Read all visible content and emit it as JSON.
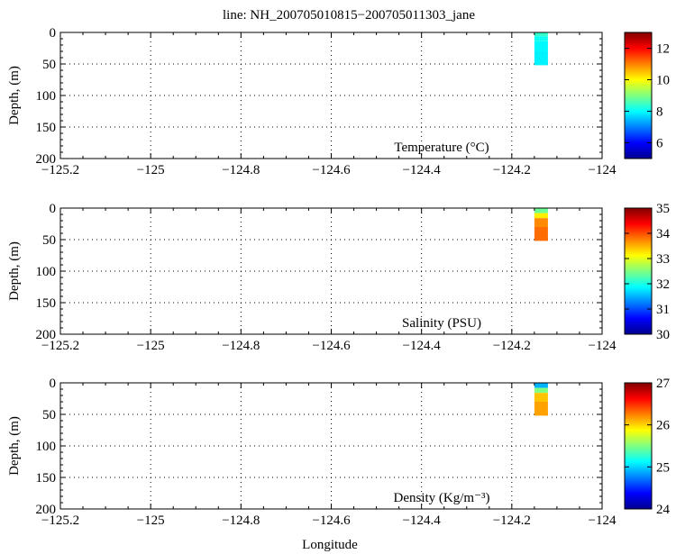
{
  "figure_title": "line: NH_200705010815−200705011303_jane",
  "colormap": [
    "#00008f",
    "#0000ff",
    "#0080ff",
    "#00ffff",
    "#80ff80",
    "#ffff00",
    "#ff8000",
    "#ff0000",
    "#800000"
  ],
  "chart_data": [
    {
      "type": "heatmap",
      "title": "line: NH_200705010815−200705011303_jane",
      "annotation": "Temperature (°C)",
      "xlabel": "",
      "ylabel": "Depth, (m)",
      "xlim": [
        -125.2,
        -124
      ],
      "ylim": [
        200,
        0
      ],
      "y_reversed": true,
      "x_ticks": [
        -125.2,
        -125,
        -124.8,
        -124.6,
        -124.4,
        -124.2,
        -124
      ],
      "x_tick_labels": [
        "−125.2",
        "−125",
        "−124.8",
        "−124.6",
        "−124.4",
        "−124.2",
        "−124"
      ],
      "y_ticks": [
        0,
        50,
        100,
        150,
        200
      ],
      "y_tick_labels": [
        "0",
        "50",
        "100",
        "150",
        "200"
      ],
      "grid": true,
      "colorbar": {
        "range": [
          5,
          13
        ],
        "ticks": [
          6,
          8,
          10,
          12
        ],
        "tick_labels": [
          "6",
          "8",
          "10",
          "12"
        ]
      },
      "data_extent": {
        "x": [
          -124.15,
          -124.12
        ],
        "depth": [
          0,
          52
        ]
      },
      "profile": [
        {
          "depth": [
            0,
            6
          ],
          "value": 8.4
        },
        {
          "depth": [
            6,
            14
          ],
          "value": 8.1
        },
        {
          "depth": [
            14,
            30
          ],
          "value": 7.95
        },
        {
          "depth": [
            30,
            52
          ],
          "value": 7.9
        }
      ]
    },
    {
      "type": "heatmap",
      "annotation": "Salinity (PSU)",
      "xlabel": "",
      "ylabel": "Depth, (m)",
      "xlim": [
        -125.2,
        -124
      ],
      "ylim": [
        200,
        0
      ],
      "y_reversed": true,
      "x_ticks": [
        -125.2,
        -125,
        -124.8,
        -124.6,
        -124.4,
        -124.2,
        -124
      ],
      "x_tick_labels": [
        "−125.2",
        "−125",
        "−124.8",
        "−124.6",
        "−124.4",
        "−124.2",
        "−124"
      ],
      "y_ticks": [
        0,
        50,
        100,
        150,
        200
      ],
      "y_tick_labels": [
        "0",
        "50",
        "100",
        "150",
        "200"
      ],
      "grid": true,
      "colorbar": {
        "range": [
          30,
          35
        ],
        "ticks": [
          30,
          31,
          32,
          33,
          34,
          35
        ],
        "tick_labels": [
          "30",
          "31",
          "32",
          "33",
          "34",
          "35"
        ]
      },
      "data_extent": {
        "x": [
          -124.15,
          -124.12
        ],
        "depth": [
          0,
          52
        ]
      },
      "profile": [
        {
          "depth": [
            0,
            8
          ],
          "value": 32.4
        },
        {
          "depth": [
            8,
            16
          ],
          "value": 33.2
        },
        {
          "depth": [
            16,
            30
          ],
          "value": 33.7
        },
        {
          "depth": [
            30,
            52
          ],
          "value": 33.85
        }
      ]
    },
    {
      "type": "heatmap",
      "annotation": "Density (Kg/m⁻³)",
      "xlabel": "Longitude",
      "ylabel": "Depth, (m)",
      "xlim": [
        -125.2,
        -124
      ],
      "ylim": [
        200,
        0
      ],
      "y_reversed": true,
      "x_ticks": [
        -125.2,
        -125,
        -124.8,
        -124.6,
        -124.4,
        -124.2,
        -124
      ],
      "x_tick_labels": [
        "−125.2",
        "−125",
        "−124.8",
        "−124.6",
        "−124.4",
        "−124.2",
        "−124"
      ],
      "y_ticks": [
        0,
        50,
        100,
        150,
        200
      ],
      "y_tick_labels": [
        "0",
        "50",
        "100",
        "150",
        "200"
      ],
      "grid": true,
      "colorbar": {
        "range": [
          24,
          27
        ],
        "ticks": [
          24,
          25,
          26,
          27
        ],
        "tick_labels": [
          "24",
          "25",
          "26",
          "27"
        ]
      },
      "data_extent": {
        "x": [
          -124.15,
          -124.12
        ],
        "depth": [
          0,
          52
        ]
      },
      "profile": [
        {
          "depth": [
            0,
            8
          ],
          "value": 24.9
        },
        {
          "depth": [
            8,
            16
          ],
          "value": 25.5
        },
        {
          "depth": [
            16,
            30
          ],
          "value": 26.05
        },
        {
          "depth": [
            30,
            52
          ],
          "value": 26.15
        }
      ]
    }
  ]
}
